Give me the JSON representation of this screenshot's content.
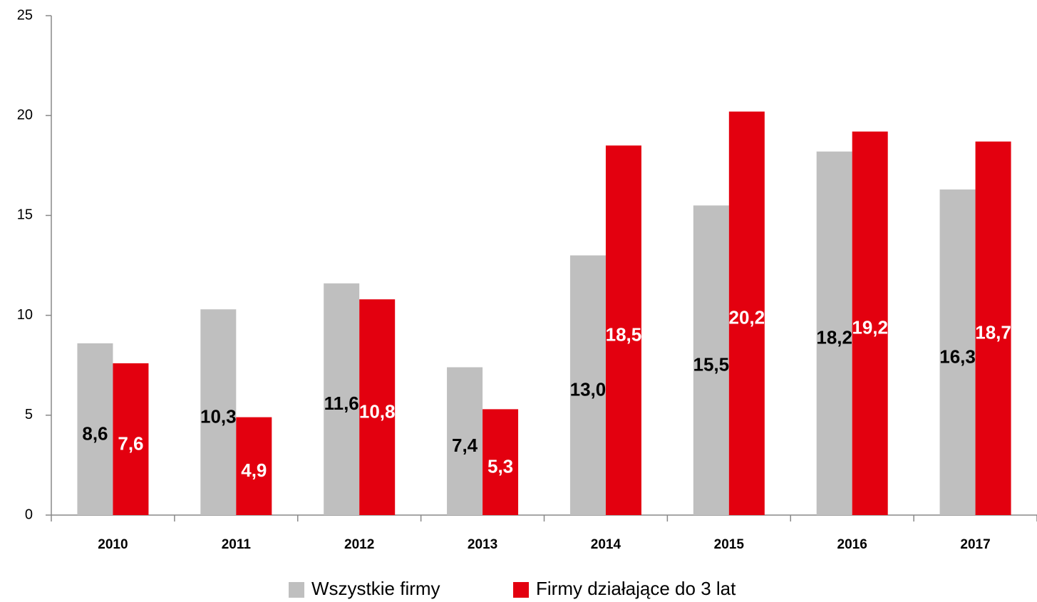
{
  "chart_data": {
    "type": "bar",
    "categories": [
      "2010",
      "2011",
      "2012",
      "2013",
      "2014",
      "2015",
      "2016",
      "2017"
    ],
    "series": [
      {
        "name": "Wszystkie firmy",
        "color": "#bfbfbf",
        "label_color": "#000000",
        "values": [
          8.6,
          10.3,
          11.6,
          7.4,
          13.0,
          15.5,
          18.2,
          16.3
        ],
        "value_labels": [
          "8,6",
          "10,3",
          "11,6",
          "7,4",
          "13,0",
          "15,5",
          "18,2",
          "16,3"
        ]
      },
      {
        "name": "Firmy działające do 3 lat",
        "color": "#e3000f",
        "label_color": "#ffffff",
        "values": [
          7.6,
          4.9,
          10.8,
          5.3,
          18.5,
          20.2,
          19.2,
          18.7
        ],
        "value_labels": [
          "7,6",
          "4,9",
          "10,8",
          "5,3",
          "18,5",
          "20,2",
          "19,2",
          "18,7"
        ]
      }
    ],
    "ylim": [
      0,
      25
    ],
    "yticks": [
      0,
      5,
      10,
      15,
      20,
      25
    ],
    "grid": false,
    "legend": "bottom"
  }
}
